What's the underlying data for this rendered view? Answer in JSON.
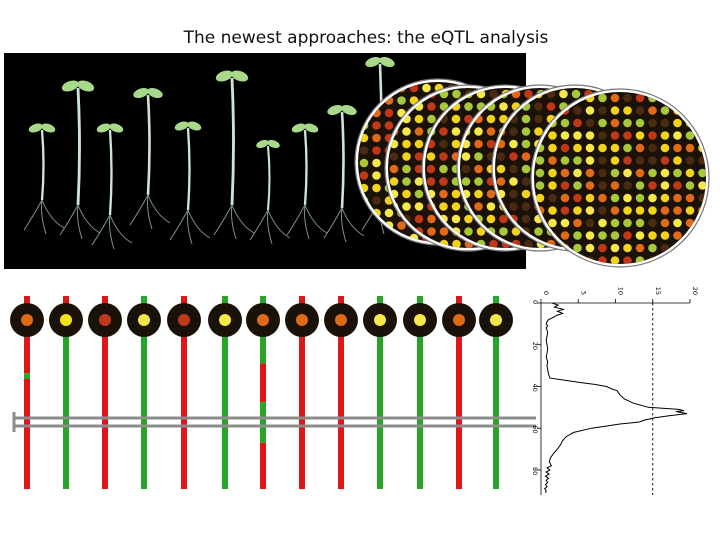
{
  "slide": {
    "title": "The newest approaches: the eQTL analysis"
  },
  "figure": {
    "background_color": "#000000",
    "seedling_color": "#cfe3d8",
    "leaf_color": "#a8d98a",
    "microarray_spot_colors": [
      "#f3d21a",
      "#e06a1a",
      "#c0371a",
      "#f6e84a",
      "#a8c83a",
      "#4a2a10"
    ],
    "marker_colors": {
      "red": "#e01515",
      "green": "#26a526"
    },
    "highlight_box_color": "#8c8c8c"
  },
  "lod_plot": {
    "top_axis_ticks": [
      "0",
      "5",
      "10",
      "15",
      "20"
    ],
    "left_axis_ticks": [
      "0",
      "20",
      "40",
      "60",
      "80"
    ],
    "top_axis_range": [
      0,
      20
    ],
    "left_axis_range": [
      0,
      92
    ],
    "threshold": 15,
    "curve_points": [
      [
        0,
        1.5
      ],
      [
        1,
        2.3
      ],
      [
        2,
        1.8
      ],
      [
        3,
        3.0
      ],
      [
        4,
        2.2
      ],
      [
        5,
        2.9
      ],
      [
        6,
        2.1
      ],
      [
        7,
        1.6
      ],
      [
        8,
        1.0
      ],
      [
        9,
        0.8
      ],
      [
        10,
        0.7
      ],
      [
        11,
        0.9
      ],
      [
        12,
        0.7
      ],
      [
        14,
        0.9
      ],
      [
        16,
        0.8
      ],
      [
        18,
        0.7
      ],
      [
        20,
        0.8
      ],
      [
        22,
        0.9
      ],
      [
        24,
        0.8
      ],
      [
        26,
        0.7
      ],
      [
        28,
        0.9
      ],
      [
        30,
        0.8
      ],
      [
        32,
        0.9
      ],
      [
        34,
        1.0
      ],
      [
        36,
        1.2
      ],
      [
        37,
        3.2
      ],
      [
        38,
        5.0
      ],
      [
        39,
        7.2
      ],
      [
        40,
        8.8
      ],
      [
        41,
        9.4
      ],
      [
        42,
        10.2
      ],
      [
        44,
        10.6
      ],
      [
        46,
        11.2
      ],
      [
        48,
        12.4
      ],
      [
        50,
        14.4
      ],
      [
        51,
        18.5
      ],
      [
        51.6,
        19.2
      ],
      [
        52,
        18.1
      ],
      [
        53,
        19.6
      ],
      [
        54,
        17.2
      ],
      [
        55,
        15.3
      ],
      [
        56,
        14.0
      ],
      [
        57,
        13.2
      ],
      [
        58,
        10.6
      ],
      [
        60,
        6.8
      ],
      [
        62,
        4.4
      ],
      [
        64,
        3.4
      ],
      [
        66,
        2.9
      ],
      [
        68,
        2.6
      ],
      [
        70,
        2.2
      ],
      [
        72,
        1.7
      ],
      [
        74,
        1.3
      ],
      [
        76,
        1.1
      ],
      [
        78,
        1.4
      ],
      [
        79,
        0.8
      ],
      [
        80,
        1.2
      ],
      [
        81,
        0.7
      ],
      [
        82,
        1.1
      ],
      [
        83,
        0.6
      ],
      [
        84,
        1.0
      ],
      [
        85,
        0.7
      ],
      [
        86,
        0.9
      ],
      [
        87,
        0.6
      ],
      [
        88,
        0.8
      ],
      [
        89,
        0.5
      ],
      [
        90,
        0.7
      ],
      [
        91,
        0.6
      ]
    ]
  },
  "genotype_lines": [
    {
      "spot": "#e06a1a",
      "segments": [
        [
          "red",
          0,
          40
        ],
        [
          "green",
          40,
          43
        ],
        [
          "red",
          43,
          100
        ]
      ]
    },
    {
      "spot": "#f3e31a",
      "segments": [
        [
          "red",
          0,
          20
        ],
        [
          "green",
          20,
          100
        ]
      ]
    },
    {
      "spot": "#c0371a",
      "segments": [
        [
          "red",
          0,
          100
        ]
      ]
    },
    {
      "spot": "#f6e84a",
      "segments": [
        [
          "green",
          0,
          100
        ]
      ]
    },
    {
      "spot": "#c0371a",
      "segments": [
        [
          "red",
          0,
          100
        ]
      ]
    },
    {
      "spot": "#f6e84a",
      "segments": [
        [
          "green",
          0,
          100
        ]
      ]
    },
    {
      "spot": "#e06a1a",
      "segments": [
        [
          "green",
          0,
          35
        ],
        [
          "red",
          35,
          55
        ],
        [
          "green",
          55,
          76
        ],
        [
          "red",
          76,
          100
        ]
      ]
    },
    {
      "spot": "#e06a1a",
      "segments": [
        [
          "red",
          0,
          100
        ]
      ]
    },
    {
      "spot": "#e06a1a",
      "segments": [
        [
          "red",
          0,
          100
        ]
      ]
    },
    {
      "spot": "#f6e84a",
      "segments": [
        [
          "green",
          0,
          100
        ]
      ]
    },
    {
      "spot": "#f6e84a",
      "segments": [
        [
          "green",
          0,
          100
        ]
      ]
    },
    {
      "spot": "#e06a1a",
      "segments": [
        [
          "red",
          0,
          100
        ]
      ]
    },
    {
      "spot": "#f6e84a",
      "segments": [
        [
          "green",
          0,
          100
        ]
      ]
    }
  ]
}
